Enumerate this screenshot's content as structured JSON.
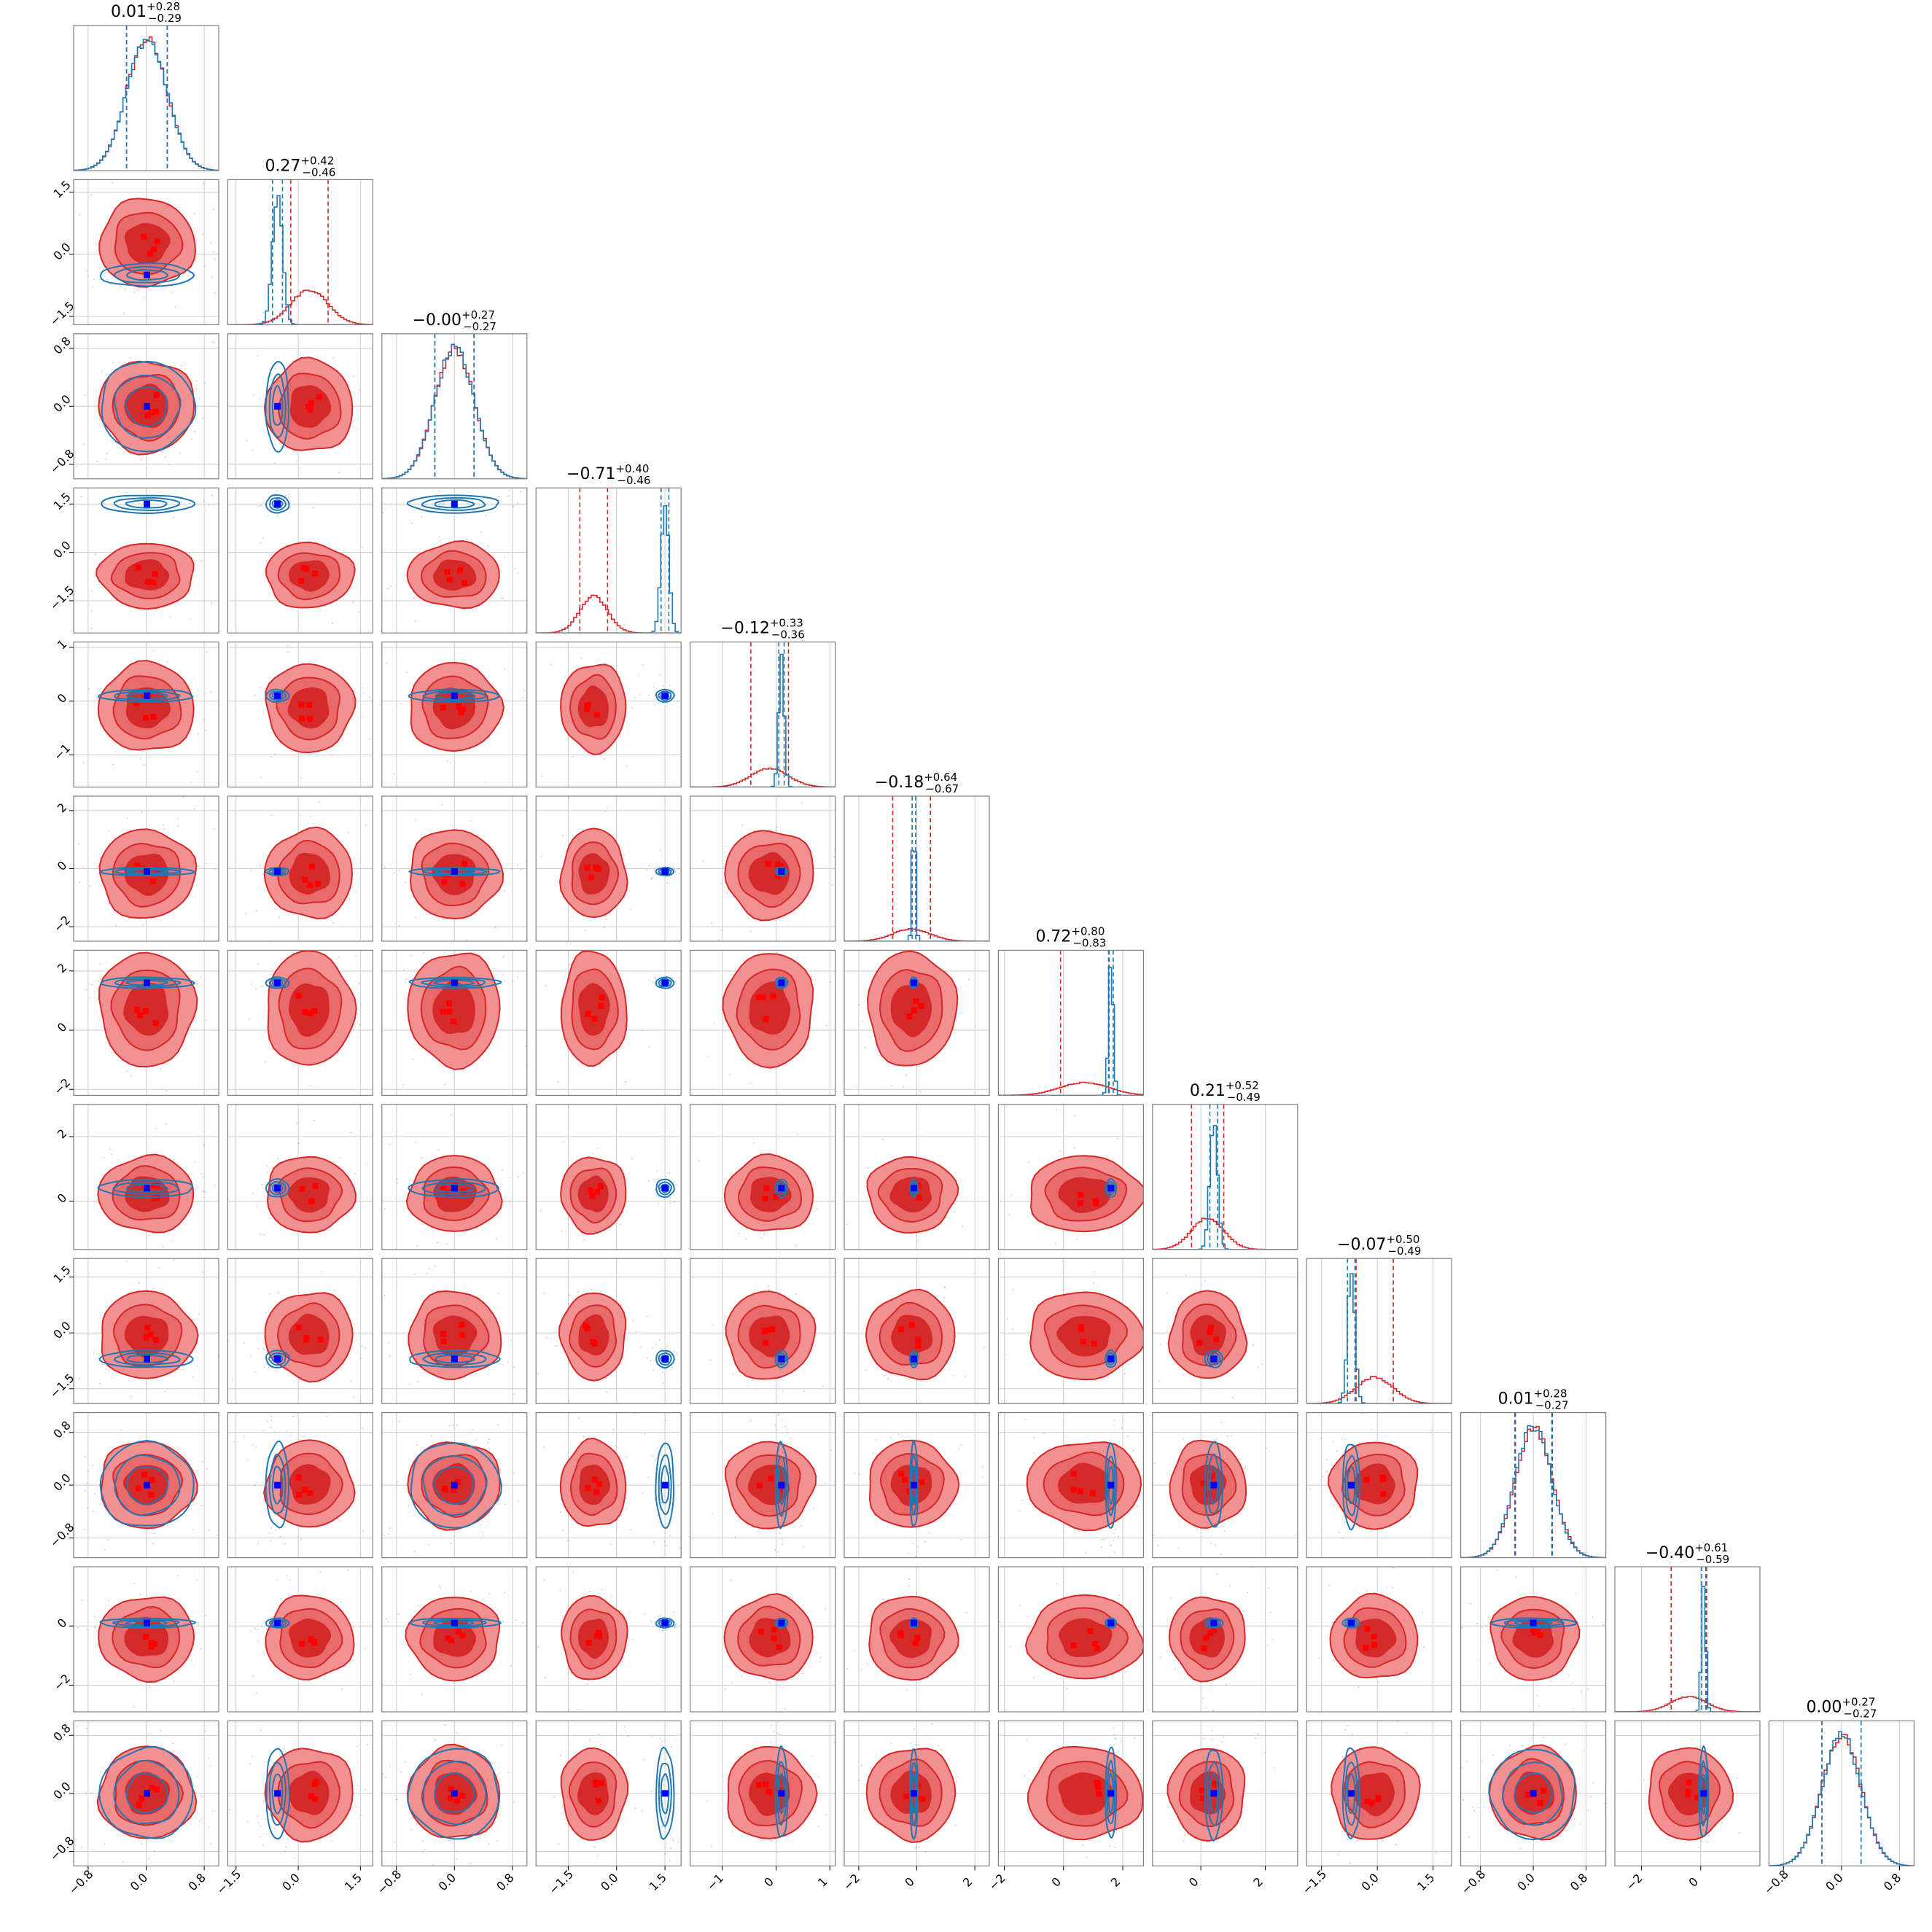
{
  "chart_data": {
    "type": "corner",
    "n_params": 12,
    "grid": true,
    "colors": {
      "primary": "#d62728",
      "secondary": "#1f77b4",
      "truth": "#0000ff",
      "accent": "#ff0000",
      "grid": "#cccccc"
    },
    "series": [
      {
        "color": "#d62728",
        "medians": [
          0.01,
          0.27,
          0.0,
          -0.71,
          -0.12,
          -0.18,
          0.72,
          0.21,
          -0.07,
          0.01,
          -0.4,
          0.0
        ],
        "sigmas": [
          0.28,
          0.45,
          0.27,
          0.43,
          0.35,
          0.65,
          0.82,
          0.5,
          0.5,
          0.28,
          0.6,
          0.27
        ]
      },
      {
        "color": "#1f77b4",
        "medians": [
          0.01,
          -0.5,
          0.0,
          1.5,
          0.1,
          -0.1,
          1.6,
          0.4,
          -0.7,
          0.0,
          0.1,
          0.0
        ],
        "sigmas": [
          0.28,
          0.12,
          0.27,
          0.12,
          0.05,
          0.06,
          0.08,
          0.12,
          0.1,
          0.28,
          0.07,
          0.27
        ]
      }
    ],
    "truths": [
      0.01,
      -0.5,
      0.0,
      1.5,
      0.1,
      -0.1,
      1.6,
      0.4,
      -0.7,
      0.0,
      0.1,
      0.0
    ],
    "titles": [
      {
        "median": "0.01",
        "plus": "+0.28",
        "minus": "−0.29"
      },
      {
        "median": "0.27",
        "plus": "+0.42",
        "minus": "−0.46"
      },
      {
        "median": "−0.00",
        "plus": "+0.27",
        "minus": "−0.27"
      },
      {
        "median": "−0.71",
        "plus": "+0.40",
        "minus": "−0.46"
      },
      {
        "median": "−0.12",
        "plus": "+0.33",
        "minus": "−0.36"
      },
      {
        "median": "−0.18",
        "plus": "+0.64",
        "minus": "−0.67"
      },
      {
        "median": "0.72",
        "plus": "+0.80",
        "minus": "−0.83"
      },
      {
        "median": "0.21",
        "plus": "+0.52",
        "minus": "−0.49"
      },
      {
        "median": "−0.07",
        "plus": "+0.50",
        "minus": "−0.49"
      },
      {
        "median": "0.01",
        "plus": "+0.28",
        "minus": "−0.27"
      },
      {
        "median": "−0.40",
        "plus": "+0.61",
        "minus": "−0.59"
      },
      {
        "median": "0.00",
        "plus": "+0.27",
        "minus": "−0.27"
      }
    ],
    "ranges": [
      [
        -1.0,
        1.0
      ],
      [
        -1.7,
        1.8
      ],
      [
        -1.0,
        1.0
      ],
      [
        -2.5,
        2.0
      ],
      [
        -1.6,
        1.1
      ],
      [
        -2.5,
        2.5
      ],
      [
        -2.2,
        2.7
      ],
      [
        -1.5,
        3.0
      ],
      [
        -1.9,
        2.0
      ],
      [
        -1.1,
        1.1
      ],
      [
        -2.9,
        2.0
      ],
      [
        -1.0,
        1.0
      ]
    ],
    "y_ticks": [
      null,
      [
        "1.5",
        "0.0",
        "−1.5"
      ],
      [
        "0.8",
        "0.0",
        "−0.8"
      ],
      [
        "1.5",
        "0.0",
        "−1.5"
      ],
      [
        "1",
        "0",
        "−1"
      ],
      [
        "2",
        "0",
        "−2"
      ],
      [
        "2",
        "0",
        "−2"
      ],
      [
        "2",
        "0"
      ],
      [
        "1.5",
        "0.0",
        "−1.5"
      ],
      [
        "0.8",
        "0.0",
        "−0.8"
      ],
      [
        "0",
        "−2"
      ],
      [
        "0.8",
        "0.0",
        "−0.8"
      ]
    ],
    "x_ticks": [
      [
        "−0.8",
        "0.0",
        "0.8"
      ],
      [
        "−1.5",
        "0.0",
        "1.5"
      ],
      [
        "−0.8",
        "0.0",
        "0.8"
      ],
      [
        "−1.5",
        "0.0",
        "1.5"
      ],
      [
        "−1",
        "0",
        "1"
      ],
      [
        "−2",
        "0",
        "2"
      ],
      [
        "−2",
        "0",
        "2"
      ],
      [
        "0",
        "2"
      ],
      [
        "−1.5",
        "0.0",
        "1.5"
      ],
      [
        "−0.8",
        "0.0",
        "0.8"
      ],
      [
        "−2",
        "0"
      ],
      [
        "−0.8",
        "0.0",
        "0.8"
      ]
    ]
  }
}
